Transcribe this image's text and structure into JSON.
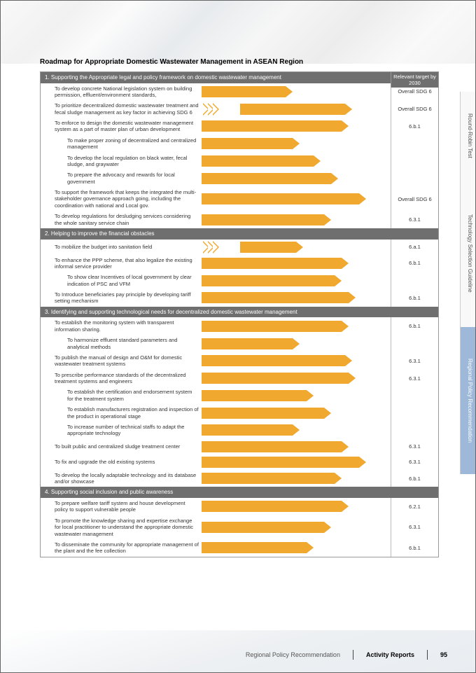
{
  "title": "Roadmap for Appropriate Domestic Wastewater Management in ASEAN Region",
  "target_header": "Relevant target by 2030",
  "colors": {
    "arrow": "#f0a82e",
    "section_bg": "#6f6f6f",
    "tab_active": "#9db8d8"
  },
  "side_tabs": [
    {
      "label": "Round-Robin Test",
      "active": false
    },
    {
      "label": "Technology Selection Guideline",
      "active": false
    },
    {
      "label": "Regional Policy Recommendation",
      "active": true
    }
  ],
  "footer": {
    "crumb1": "Regional Policy Recommendation",
    "crumb2": "Activity Reports",
    "page": "95"
  },
  "sections": [
    {
      "header": "1.  Supporting the Appropriate legal and policy framework on domestic wastewater management",
      "rows": [
        {
          "text": "To develop concrete National legislation system on building permission, effluent/environment standards,",
          "indent": 1,
          "chev": false,
          "arrow_start": 0,
          "arrow_len": 120,
          "target": "Overall SDG 6"
        },
        {
          "text": "To prioritize decentralized domestic wastewater treatment and fecal sludge management as key factor in achieving SDG 6",
          "indent": 1,
          "chev": true,
          "arrow_start": 28,
          "arrow_len": 150,
          "target": "Overall SDG 6"
        },
        {
          "text": "To enforce to design the domestic wastewater management system as a part of master plan of urban development",
          "indent": 1,
          "chev": false,
          "arrow_start": 0,
          "arrow_len": 200,
          "target": "6.b.1"
        },
        {
          "text": "To make proper zoning of decentralized and centralized management",
          "indent": 2,
          "chev": false,
          "arrow_start": 0,
          "arrow_len": 130,
          "target": ""
        },
        {
          "text": "To develop the local regulation on black water, fecal sludge, and graywater",
          "indent": 2,
          "chev": false,
          "arrow_start": 0,
          "arrow_len": 160,
          "target": ""
        },
        {
          "text": "To prepare the advocacy and rewards for local government",
          "indent": 2,
          "chev": false,
          "arrow_start": 0,
          "arrow_len": 185,
          "target": ""
        },
        {
          "text": "To support the framework that keeps the integrated the multi-stakeholder governance approach going, including the coordination with national and Local gov.",
          "indent": 1,
          "chev": false,
          "arrow_start": 0,
          "arrow_len": 225,
          "target": "Overall SDG 6"
        },
        {
          "text": "To develop regulations for desludging services considering the whole sanitary service chain",
          "indent": 1,
          "chev": false,
          "arrow_start": 0,
          "arrow_len": 175,
          "target": "6.3.1"
        }
      ]
    },
    {
      "header": "2.  Helping to improve the financial obstacles",
      "rows": [
        {
          "text": "To mobilize the budget into sanitation field",
          "indent": 1,
          "chev": true,
          "arrow_start": 28,
          "arrow_len": 80,
          "target": "6.a.1"
        },
        {
          "text": "To enhance the PPP scheme, that also legalize the existing informal service provider",
          "indent": 1,
          "chev": false,
          "arrow_start": 0,
          "arrow_len": 200,
          "target": "6.b.1"
        },
        {
          "text": "To show clear Incentives of local government by clear indication of PSC and VFM",
          "indent": 2,
          "chev": false,
          "arrow_start": 0,
          "arrow_len": 190,
          "target": ""
        },
        {
          "text": "To Introduce beneficiaries pay principle by developing tariff setting mechanism",
          "indent": 1,
          "chev": false,
          "arrow_start": 0,
          "arrow_len": 210,
          "target": "6.b.1"
        }
      ]
    },
    {
      "header": "3.  Identifying and supporting technological needs for decentralized domestic wastewater management",
      "rows": [
        {
          "text": "To establish the monitoring system with transparent information sharing.",
          "indent": 1,
          "chev": false,
          "arrow_start": 0,
          "arrow_len": 200,
          "target": "6.b.1"
        },
        {
          "text": "To harmonize effluent standard parameters and analytical methods",
          "indent": 2,
          "chev": false,
          "arrow_start": 0,
          "arrow_len": 130,
          "target": ""
        },
        {
          "text": "To publish the manual of design and O&M for domestic wastewater treatment systems",
          "indent": 1,
          "chev": false,
          "arrow_start": 0,
          "arrow_len": 205,
          "target": "6.3.1"
        },
        {
          "text": "To prescribe performance standards of the decentralized treatment systems and engineers",
          "indent": 1,
          "chev": false,
          "arrow_start": 0,
          "arrow_len": 210,
          "target": "6.3.1"
        },
        {
          "text": "To establish the certification and endorsement system for the treatment system",
          "indent": 2,
          "chev": false,
          "arrow_start": 0,
          "arrow_len": 150,
          "target": ""
        },
        {
          "text": "To establish manufacturers registration and inspection of the product in operational stage",
          "indent": 2,
          "chev": false,
          "arrow_start": 0,
          "arrow_len": 175,
          "target": ""
        },
        {
          "text": "To increase number of technical staffs to adapt the appropriate technology",
          "indent": 2,
          "chev": false,
          "arrow_start": 0,
          "arrow_len": 130,
          "target": ""
        },
        {
          "text": "To built public and centralized sludge treatment center",
          "indent": 1,
          "chev": false,
          "arrow_start": 0,
          "arrow_len": 200,
          "target": "6.3.1"
        },
        {
          "text": "To fix and upgrade the old existing systems",
          "indent": 1,
          "chev": false,
          "arrow_start": 0,
          "arrow_len": 225,
          "target": "6.3.1"
        },
        {
          "text": "To develop the locally adaptable technology and its database and/or showcase",
          "indent": 1,
          "chev": false,
          "arrow_start": 0,
          "arrow_len": 190,
          "target": "6.b.1"
        }
      ]
    },
    {
      "header": "4.  Supporting social inclusion and public awareness",
      "rows": [
        {
          "text": "To prepare welfare tariff system and house development policy to support vulnerable people",
          "indent": 1,
          "chev": false,
          "arrow_start": 0,
          "arrow_len": 200,
          "target": "6.2.1"
        },
        {
          "text": "To promote the knowledge sharing and expertise exchange for local practitioner to understand the appropriate domestic wastewater management",
          "indent": 1,
          "chev": false,
          "arrow_start": 0,
          "arrow_len": 175,
          "target": "6.3.1"
        },
        {
          "text": "To disseminate the community for appropriate management of the plant and the fee collection",
          "indent": 1,
          "chev": false,
          "arrow_start": 0,
          "arrow_len": 150,
          "target": "6.b.1"
        }
      ]
    }
  ]
}
